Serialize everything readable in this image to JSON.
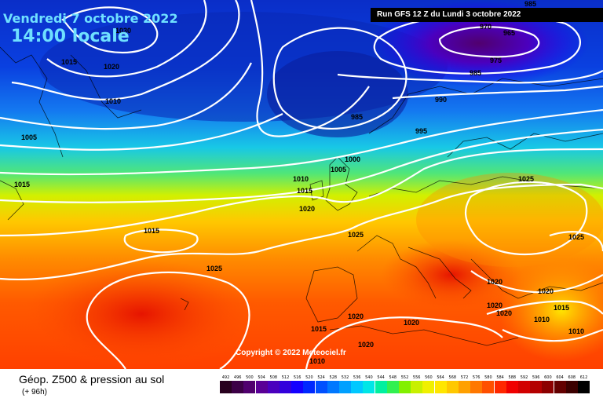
{
  "header": {
    "date": "Vendredi 7 octobre 2022",
    "time": "14:00 locale",
    "run": "Run GFS 12 Z du Lundi 3 octobre 2022",
    "copyright": "Copyright © 2022 Meteociel.fr"
  },
  "footer": {
    "title": "Géop. Z500 & pression au sol",
    "subtitle": "(+ 96h)"
  },
  "scale": {
    "labels": [
      "492",
      "496",
      "500",
      "504",
      "508",
      "512",
      "516",
      "520",
      "524",
      "528",
      "532",
      "536",
      "540",
      "544",
      "548",
      "552",
      "556",
      "560",
      "564",
      "568",
      "572",
      "576",
      "580",
      "584",
      "588",
      "592",
      "596",
      "600",
      "604",
      "608",
      "612"
    ],
    "colors": [
      "#28001e",
      "#3c0046",
      "#50006e",
      "#5a0096",
      "#4b00be",
      "#3200dc",
      "#1400ff",
      "#0028ff",
      "#0050ff",
      "#0078ff",
      "#00a0ff",
      "#00c8ff",
      "#00e6e6",
      "#00f0a0",
      "#32f050",
      "#82f000",
      "#c8f000",
      "#f0f000",
      "#ffe600",
      "#ffc800",
      "#ffa000",
      "#ff7800",
      "#ff5000",
      "#ff2800",
      "#f00000",
      "#d20000",
      "#b40000",
      "#8c0000",
      "#640000",
      "#3c0000",
      "#000000"
    ]
  },
  "isobars": [
    "1030",
    "1015",
    "1020",
    "1010",
    "1005",
    "985",
    "970",
    "965",
    "975",
    "985",
    "990",
    "995",
    "1000",
    "1005",
    "1010",
    "1015",
    "1020",
    "1025",
    "1015",
    "1015",
    "1025",
    "1025",
    "1025",
    "1020",
    "1020",
    "1020",
    "1020",
    "1020",
    "1010",
    "1015",
    "1010",
    "1015",
    "1010",
    "1020",
    "1020",
    "985"
  ]
}
